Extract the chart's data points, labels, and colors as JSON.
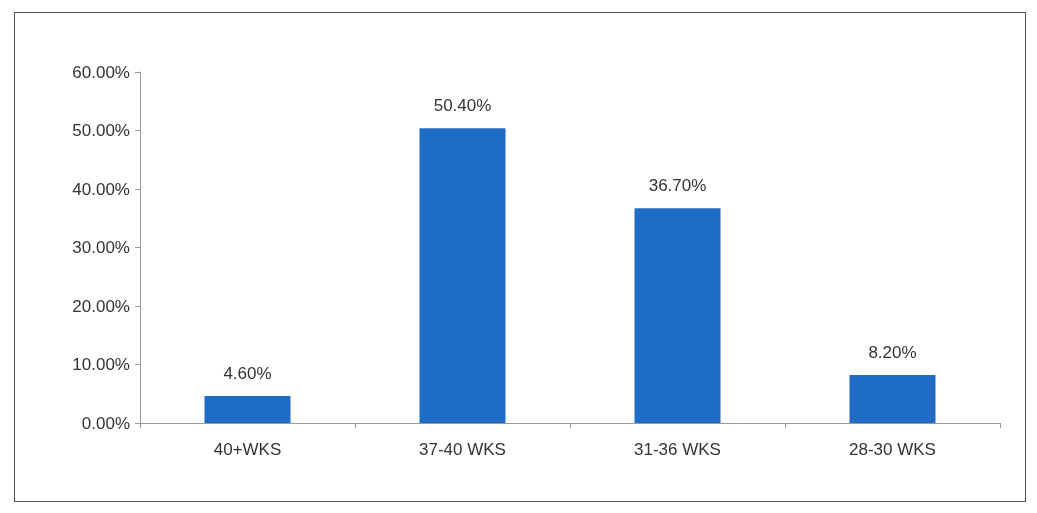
{
  "chart_data": {
    "type": "bar",
    "categories": [
      "40+WKS",
      "37-40 WKS",
      "31-36 WKS",
      "28-30 WKS"
    ],
    "values": [
      4.6,
      50.4,
      36.7,
      8.2
    ],
    "value_labels": [
      "4.60%",
      "50.40%",
      "36.70%",
      "8.20%"
    ],
    "color": "#1f6cc4",
    "ylim": [
      0,
      60
    ],
    "yticks": [
      {
        "value": 0,
        "label": "0.00%"
      },
      {
        "value": 10,
        "label": "10.00%"
      },
      {
        "value": 20,
        "label": "20.00%"
      },
      {
        "value": 30,
        "label": "30.00%"
      },
      {
        "value": 40,
        "label": "40.00%"
      },
      {
        "value": 50,
        "label": "50.00%"
      },
      {
        "value": 60,
        "label": "60.00%"
      }
    ],
    "grid": false
  }
}
